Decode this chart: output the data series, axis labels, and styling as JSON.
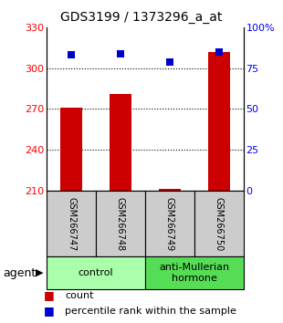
{
  "title": "GDS3199 / 1373296_a_at",
  "samples": [
    "GSM266747",
    "GSM266748",
    "GSM266749",
    "GSM266750"
  ],
  "bar_values": [
    271,
    281,
    211,
    312
  ],
  "percentile_values": [
    83,
    84,
    79,
    85
  ],
  "bar_color": "#cc0000",
  "dot_color": "#0000cc",
  "ylim_left": [
    210,
    330
  ],
  "ylim_right": [
    0,
    100
  ],
  "yticks_left": [
    210,
    240,
    270,
    300,
    330
  ],
  "yticks_right": [
    0,
    25,
    50,
    75,
    100
  ],
  "ytick_labels_right": [
    "0",
    "25",
    "50",
    "75",
    "100%"
  ],
  "bar_base": 210,
  "groups": [
    {
      "label": "control",
      "cols": [
        0,
        1
      ],
      "color": "#aaffaa"
    },
    {
      "label": "anti-Mullerian\nhormone",
      "cols": [
        2,
        3
      ],
      "color": "#55dd55"
    }
  ],
  "agent_label": "agent",
  "legend_items": [
    {
      "color": "#cc0000",
      "label": "count"
    },
    {
      "color": "#0000cc",
      "label": "percentile rank within the sample"
    }
  ],
  "sample_bg": "#cccccc",
  "bar_width": 0.45,
  "dot_size": 40,
  "grid_yticks": [
    240,
    270,
    300
  ],
  "title_fontsize": 10,
  "tick_fontsize": 8,
  "sample_fontsize": 7,
  "group_fontsize": 8,
  "legend_fontsize": 8
}
